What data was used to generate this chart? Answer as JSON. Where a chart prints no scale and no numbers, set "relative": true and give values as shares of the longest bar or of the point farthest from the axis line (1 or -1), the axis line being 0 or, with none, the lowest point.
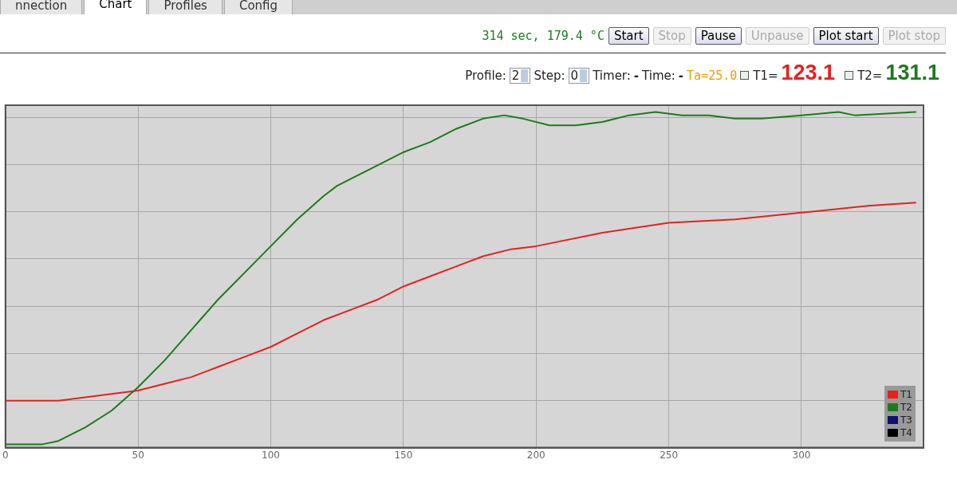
{
  "chart_data": {
    "type": "line",
    "annotations": [
      "nnection",
      "Chart",
      "Profiles",
      "Config",
      "314 sec, 179.4 °C",
      "Start",
      "Stop",
      "Pause",
      "Unpause",
      "Plot start",
      "Plot stop",
      "Profile:",
      "2",
      "Step:",
      "0",
      "Timer:",
      "-",
      "Time:",
      "-",
      "Ta=25.0",
      "T1=",
      "123.1",
      "T2=",
      "131.1"
    ],
    "relative": true,
    "xlim": [
      0,
      346
    ],
    "xticks": [
      0,
      50,
      100,
      150,
      200,
      250,
      300
    ],
    "tick_labels": "x",
    "grid": true,
    "legend": "bottom right",
    "marker": "none",
    "series": [
      {
        "name": "T1",
        "color": "#e8201e",
        "x": [
          0,
          20,
          30,
          40,
          50,
          60,
          70,
          80,
          90,
          100,
          110,
          120,
          130,
          140,
          150,
          160,
          170,
          180,
          190,
          200,
          225,
          250,
          275,
          300,
          325,
          343
        ],
        "values": [
          0.14,
          0.14,
          0.15,
          0.16,
          0.17,
          0.19,
          0.21,
          0.24,
          0.27,
          0.3,
          0.34,
          0.38,
          0.41,
          0.44,
          0.48,
          0.51,
          0.54,
          0.57,
          0.59,
          0.6,
          0.64,
          0.67,
          0.68,
          0.7,
          0.72,
          0.73
        ]
      },
      {
        "name": "T2",
        "color": "#1e7a1e",
        "x": [
          0,
          14,
          20,
          30,
          40,
          50,
          60,
          70,
          80,
          90,
          100,
          110,
          120,
          125,
          130,
          140,
          150,
          160,
          170,
          180,
          188,
          195,
          205,
          215,
          225,
          235,
          245,
          255,
          265,
          275,
          285,
          300,
          314,
          320,
          343
        ],
        "values": [
          0.01,
          0.01,
          0.02,
          0.06,
          0.11,
          0.18,
          0.26,
          0.35,
          0.44,
          0.52,
          0.6,
          0.68,
          0.75,
          0.78,
          0.8,
          0.84,
          0.88,
          0.91,
          0.95,
          0.98,
          0.99,
          0.98,
          0.96,
          0.96,
          0.97,
          0.99,
          1.0,
          0.99,
          0.99,
          0.98,
          0.98,
          0.99,
          1.0,
          0.99,
          1.0
        ]
      },
      {
        "name": "T3",
        "color": "#10106e"
      },
      {
        "name": "T4",
        "color": "#000000"
      }
    ]
  }
}
